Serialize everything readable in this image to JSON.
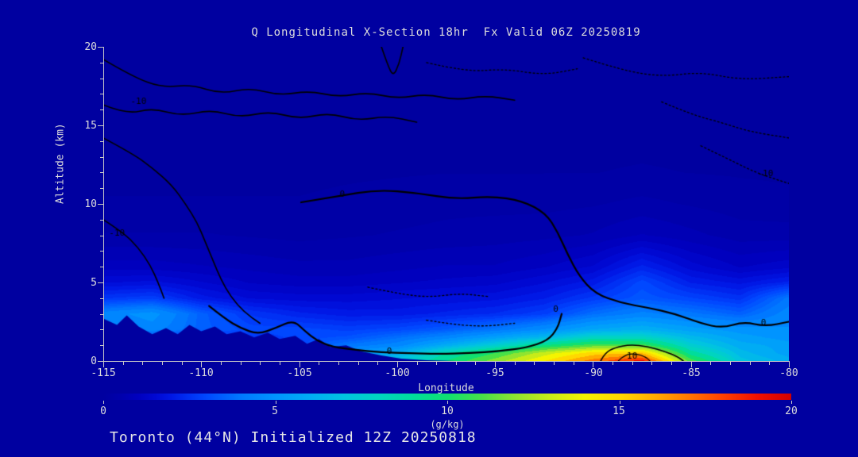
{
  "title": "Q Longitudinal X-Section 18hr  Fx Valid 06Z 20250819",
  "footer": "Toronto (44°N) Initialized 12Z 20250818",
  "axes": {
    "y": {
      "title": "Altitude (km)",
      "ticks": [
        "20",
        "15",
        "10",
        "5",
        "0"
      ]
    },
    "x": {
      "title": "Longitude",
      "ticks": [
        "-115",
        "-110",
        "-105",
        "-100",
        "-95",
        "-90",
        "-85",
        "-80"
      ]
    }
  },
  "colorbar": {
    "ticks": [
      "0",
      "5",
      "10",
      "15",
      "20"
    ],
    "unit": "(g/kg)",
    "min": 0,
    "max": 20
  },
  "colors": {
    "background": "#0000A0",
    "axis": "#C8C8C8",
    "text": "#DCDCDC",
    "contour": "#000000"
  },
  "chart_data": {
    "type": "heatmap",
    "title": "Q Longitudinal X-Section 18hr  Fx Valid 06Z 20250819",
    "xlabel": "Longitude",
    "ylabel": "Altitude (km)",
    "units": "g/kg",
    "xlim": [
      -115,
      -80
    ],
    "ylim": [
      0,
      20
    ],
    "x": [
      -115,
      -112.5,
      -110,
      -107.5,
      -105,
      -102.5,
      -100,
      -97.5,
      -95,
      -92.5,
      -90,
      -87.5,
      -85,
      -82.5,
      -80
    ],
    "y": [
      0,
      0.5,
      1,
      1.5,
      2,
      3,
      4,
      5,
      6,
      8,
      10,
      12,
      15,
      20
    ],
    "values": [
      [
        3.0,
        2.5,
        2.5,
        2.5,
        3.0,
        6.0,
        7.0,
        9.5,
        12.0,
        14.5,
        17.0,
        19.0,
        11.0,
        7.0,
        6.0
      ],
      [
        3.0,
        2.5,
        2.5,
        2.5,
        3.0,
        5.0,
        6.0,
        8.5,
        10.5,
        13.0,
        15.0,
        15.5,
        9.0,
        6.5,
        5.5
      ],
      [
        3.0,
        2.8,
        2.5,
        2.5,
        3.0,
        4.0,
        4.5,
        6.0,
        7.5,
        9.5,
        11.0,
        11.0,
        7.5,
        6.0,
        5.5
      ],
      [
        3.2,
        3.0,
        2.6,
        2.6,
        3.0,
        3.2,
        3.8,
        4.5,
        5.5,
        6.5,
        8.0,
        8.0,
        6.5,
        5.5,
        5.0
      ],
      [
        4.0,
        4.5,
        3.5,
        3.0,
        3.0,
        2.8,
        3.0,
        3.4,
        4.0,
        4.8,
        5.8,
        6.2,
        5.5,
        5.0,
        4.8
      ],
      [
        4.5,
        5.0,
        3.5,
        2.6,
        2.2,
        2.0,
        2.0,
        2.2,
        2.4,
        2.8,
        3.8,
        4.4,
        4.0,
        3.5,
        4.5
      ],
      [
        2.6,
        2.8,
        2.0,
        1.6,
        1.5,
        1.5,
        1.6,
        1.7,
        1.8,
        2.1,
        2.7,
        3.3,
        2.9,
        2.5,
        4.0
      ],
      [
        1.6,
        1.7,
        1.4,
        1.1,
        1.0,
        1.0,
        1.1,
        1.2,
        1.3,
        1.6,
        2.0,
        3.0,
        2.1,
        1.8,
        2.2
      ],
      [
        1.0,
        1.0,
        0.9,
        0.8,
        0.7,
        0.7,
        0.8,
        0.9,
        0.9,
        1.1,
        1.4,
        2.2,
        1.5,
        1.1,
        1.3
      ],
      [
        0.4,
        0.4,
        0.4,
        0.35,
        0.3,
        0.35,
        0.4,
        0.45,
        0.5,
        0.55,
        0.65,
        0.9,
        0.7,
        0.5,
        0.5
      ],
      [
        0.15,
        0.15,
        0.15,
        0.15,
        0.15,
        0.2,
        0.25,
        0.3,
        0.3,
        0.3,
        0.35,
        0.45,
        0.35,
        0.25,
        0.2
      ],
      [
        0.05,
        0.05,
        0.05,
        0.05,
        0.05,
        0.08,
        0.1,
        0.12,
        0.12,
        0.12,
        0.12,
        0.15,
        0.12,
        0.1,
        0.08
      ],
      [
        0.02,
        0.02,
        0.02,
        0.02,
        0.02,
        0.02,
        0.02,
        0.02,
        0.02,
        0.02,
        0.02,
        0.02,
        0.02,
        0.02,
        0.02
      ],
      [
        0.01,
        0.01,
        0.01,
        0.01,
        0.01,
        0.01,
        0.01,
        0.01,
        0.01,
        0.01,
        0.01,
        0.01,
        0.01,
        0.01,
        0.01
      ]
    ],
    "colormap": [
      [
        0,
        "#0000A0"
      ],
      [
        0.5,
        "#0000AC"
      ],
      [
        1,
        "#0000BE"
      ],
      [
        1.5,
        "#0008D2"
      ],
      [
        2,
        "#0018E6"
      ],
      [
        2.5,
        "#0030F4"
      ],
      [
        3,
        "#0048FF"
      ],
      [
        3.5,
        "#0060FF"
      ],
      [
        4,
        "#0078FF"
      ],
      [
        5,
        "#0094FF"
      ],
      [
        6,
        "#00ACF4"
      ],
      [
        7,
        "#00C4E0"
      ],
      [
        8,
        "#00D4C0"
      ],
      [
        9,
        "#00DC9C"
      ],
      [
        10,
        "#10E070"
      ],
      [
        11,
        "#48E048"
      ],
      [
        12,
        "#90E430"
      ],
      [
        13,
        "#C8EC18"
      ],
      [
        14,
        "#F4F400"
      ],
      [
        15,
        "#FFD800"
      ],
      [
        16,
        "#FFAC00"
      ],
      [
        17,
        "#FF7800"
      ],
      [
        18,
        "#FF4000"
      ],
      [
        19,
        "#F01000"
      ],
      [
        20,
        "#D00000"
      ]
    ],
    "terrain_profile": [
      [
        -115,
        2.7
      ],
      [
        -114.3,
        2.3
      ],
      [
        -113.8,
        2.9
      ],
      [
        -113.2,
        2.2
      ],
      [
        -112.5,
        1.7
      ],
      [
        -111.8,
        2.1
      ],
      [
        -111.2,
        1.7
      ],
      [
        -110.6,
        2.3
      ],
      [
        -110,
        1.9
      ],
      [
        -109.3,
        2.2
      ],
      [
        -108.7,
        1.7
      ],
      [
        -108,
        1.9
      ],
      [
        -107.3,
        1.5
      ],
      [
        -106.6,
        1.8
      ],
      [
        -106,
        1.4
      ],
      [
        -105.2,
        1.6
      ],
      [
        -104.6,
        1.1
      ],
      [
        -104,
        1.4
      ],
      [
        -103.4,
        0.9
      ],
      [
        -102.6,
        1.0
      ],
      [
        -101.8,
        0.6
      ],
      [
        -100.8,
        0.35
      ],
      [
        -99.8,
        0.15
      ],
      [
        -98.5,
        0.05
      ],
      [
        -97,
        0.0
      ],
      [
        -80,
        0.0
      ]
    ],
    "contours": [
      {
        "style": "solid",
        "width": 1.6,
        "points": [
          [
            -115,
            19.2
          ],
          [
            -113.5,
            18.1
          ],
          [
            -112,
            17.4
          ],
          [
            -110.5,
            17.6
          ],
          [
            -109,
            17.0
          ],
          [
            -107.5,
            17.4
          ],
          [
            -106,
            16.9
          ],
          [
            -104.5,
            17.2
          ],
          [
            -103,
            16.8
          ],
          [
            -101.5,
            17.1
          ],
          [
            -100,
            16.7
          ],
          [
            -98.5,
            17.0
          ],
          [
            -97,
            16.6
          ],
          [
            -95.5,
            16.9
          ],
          [
            -94,
            16.6
          ]
        ]
      },
      {
        "style": "solid",
        "width": 1.6,
        "points": [
          [
            -115,
            16.3
          ],
          [
            -113.8,
            15.7
          ],
          [
            -112.5,
            16.1
          ],
          [
            -111,
            15.6
          ],
          [
            -109.5,
            16.0
          ],
          [
            -108,
            15.5
          ],
          [
            -106.5,
            15.9
          ],
          [
            -105,
            15.4
          ],
          [
            -103.5,
            15.8
          ],
          [
            -102,
            15.3
          ],
          [
            -100.5,
            15.6
          ],
          [
            -99,
            15.2
          ]
        ]
      },
      {
        "style": "solid",
        "width": 1.6,
        "points": [
          [
            -115,
            14.2
          ],
          [
            -113.5,
            13.2
          ],
          [
            -112.5,
            12.3
          ],
          [
            -111.5,
            11.2
          ],
          [
            -110.8,
            10.0
          ],
          [
            -110.2,
            8.8
          ],
          [
            -109.8,
            7.6
          ],
          [
            -109.4,
            6.4
          ],
          [
            -109.0,
            5.2
          ],
          [
            -108.5,
            4.1
          ],
          [
            -107.8,
            3.1
          ],
          [
            -107.0,
            2.4
          ]
        ]
      },
      {
        "style": "solid",
        "width": 1.6,
        "points": [
          [
            -115,
            9.0
          ],
          [
            -114,
            8.2
          ],
          [
            -113.2,
            7.2
          ],
          [
            -112.6,
            6.1
          ],
          [
            -112.2,
            5.0
          ],
          [
            -111.9,
            4.0
          ]
        ]
      },
      {
        "style": "solid",
        "width": 2.2,
        "points": [
          [
            -104.9,
            10.1
          ],
          [
            -103,
            10.5
          ],
          [
            -101,
            10.9
          ],
          [
            -99,
            10.7
          ],
          [
            -97,
            10.3
          ],
          [
            -95.2,
            10.5
          ],
          [
            -93.6,
            10.2
          ],
          [
            -92.4,
            9.4
          ],
          [
            -91.8,
            8.2
          ],
          [
            -91.3,
            6.8
          ],
          [
            -90.7,
            5.4
          ],
          [
            -89.9,
            4.3
          ],
          [
            -88.6,
            3.7
          ],
          [
            -87.2,
            3.4
          ],
          [
            -85.8,
            3.0
          ],
          [
            -84.5,
            2.4
          ],
          [
            -83.4,
            2.1
          ],
          [
            -82.3,
            2.5
          ],
          [
            -81.2,
            2.2
          ],
          [
            -80,
            2.5
          ]
        ]
      },
      {
        "style": "solid",
        "width": 2.2,
        "points": [
          [
            -109.6,
            3.5
          ],
          [
            -108.8,
            2.7
          ],
          [
            -108.0,
            2.1
          ],
          [
            -107.1,
            1.7
          ],
          [
            -106.2,
            2.1
          ],
          [
            -105.3,
            2.6
          ],
          [
            -104.7,
            1.9
          ],
          [
            -104.1,
            1.3
          ],
          [
            -103.3,
            0.9
          ],
          [
            -102.1,
            0.7
          ],
          [
            -100.8,
            0.55
          ],
          [
            -99.4,
            0.5
          ],
          [
            -97.9,
            0.45
          ],
          [
            -96.3,
            0.5
          ],
          [
            -94.8,
            0.62
          ],
          [
            -93.4,
            0.85
          ],
          [
            -92.3,
            1.3
          ],
          [
            -91.8,
            2.1
          ],
          [
            -91.6,
            3.0
          ]
        ]
      },
      {
        "style": "solid",
        "width": 1.6,
        "points": [
          [
            -89.6,
            0.02
          ],
          [
            -89.4,
            0.5
          ],
          [
            -88.9,
            0.85
          ],
          [
            -88.1,
            1.05
          ],
          [
            -87.2,
            0.92
          ],
          [
            -86.3,
            0.6
          ],
          [
            -85.7,
            0.28
          ],
          [
            -85.4,
            0.02
          ]
        ]
      },
      {
        "style": "solid",
        "width": 1.2,
        "points": [
          [
            -88.7,
            0.02
          ],
          [
            -88.4,
            0.4
          ],
          [
            -87.8,
            0.48
          ],
          [
            -87.3,
            0.25
          ],
          [
            -87.1,
            0.02
          ]
        ]
      },
      {
        "style": "solid",
        "width": 1.6,
        "points": [
          [
            -100.8,
            20
          ],
          [
            -100.5,
            18.9
          ],
          [
            -100.2,
            18.1
          ],
          [
            -99.9,
            18.9
          ],
          [
            -99.7,
            20
          ]
        ]
      },
      {
        "style": "dotted",
        "width": 1.3,
        "points": [
          [
            -90.5,
            19.3
          ],
          [
            -88.5,
            18.5
          ],
          [
            -86.5,
            18.1
          ],
          [
            -84.5,
            18.4
          ],
          [
            -82.5,
            17.9
          ],
          [
            -80,
            18.1
          ]
        ]
      },
      {
        "style": "dotted",
        "width": 1.3,
        "points": [
          [
            -86.5,
            16.5
          ],
          [
            -85,
            15.7
          ],
          [
            -83.5,
            15.2
          ],
          [
            -82,
            14.6
          ],
          [
            -80,
            14.2
          ]
        ]
      },
      {
        "style": "dotted",
        "width": 1.3,
        "points": [
          [
            -84.5,
            13.7
          ],
          [
            -83,
            12.8
          ],
          [
            -81.7,
            12.0
          ],
          [
            -80.5,
            11.5
          ],
          [
            -80,
            11.3
          ]
        ]
      },
      {
        "style": "dotted",
        "width": 1.3,
        "points": [
          [
            -98.5,
            19.0
          ],
          [
            -96.5,
            18.4
          ],
          [
            -94.5,
            18.6
          ],
          [
            -92.5,
            18.2
          ],
          [
            -90.8,
            18.6
          ]
        ]
      },
      {
        "style": "dotted",
        "width": 1.3,
        "points": [
          [
            -101.5,
            4.7
          ],
          [
            -100,
            4.3
          ],
          [
            -98.4,
            4.05
          ],
          [
            -96.8,
            4.3
          ],
          [
            -95.3,
            4.1
          ]
        ]
      },
      {
        "style": "dotted",
        "width": 1.3,
        "points": [
          [
            -98.5,
            2.6
          ],
          [
            -97,
            2.3
          ],
          [
            -95.5,
            2.2
          ],
          [
            -94,
            2.4
          ]
        ]
      }
    ],
    "contour_labels": [
      {
        "text": "-10",
        "lon": -113.2,
        "alt": 16.5
      },
      {
        "text": "-10",
        "lon": -114.3,
        "alt": 8.1
      },
      {
        "text": "0",
        "lon": -102.8,
        "alt": 10.6
      },
      {
        "text": "0",
        "lon": -100.4,
        "alt": 0.6
      },
      {
        "text": "0",
        "lon": -91.9,
        "alt": 3.3
      },
      {
        "text": "10",
        "lon": -88.0,
        "alt": 0.3
      },
      {
        "text": "0",
        "lon": -81.3,
        "alt": 2.4
      },
      {
        "text": "-10",
        "lon": -81.2,
        "alt": 11.9
      }
    ]
  }
}
